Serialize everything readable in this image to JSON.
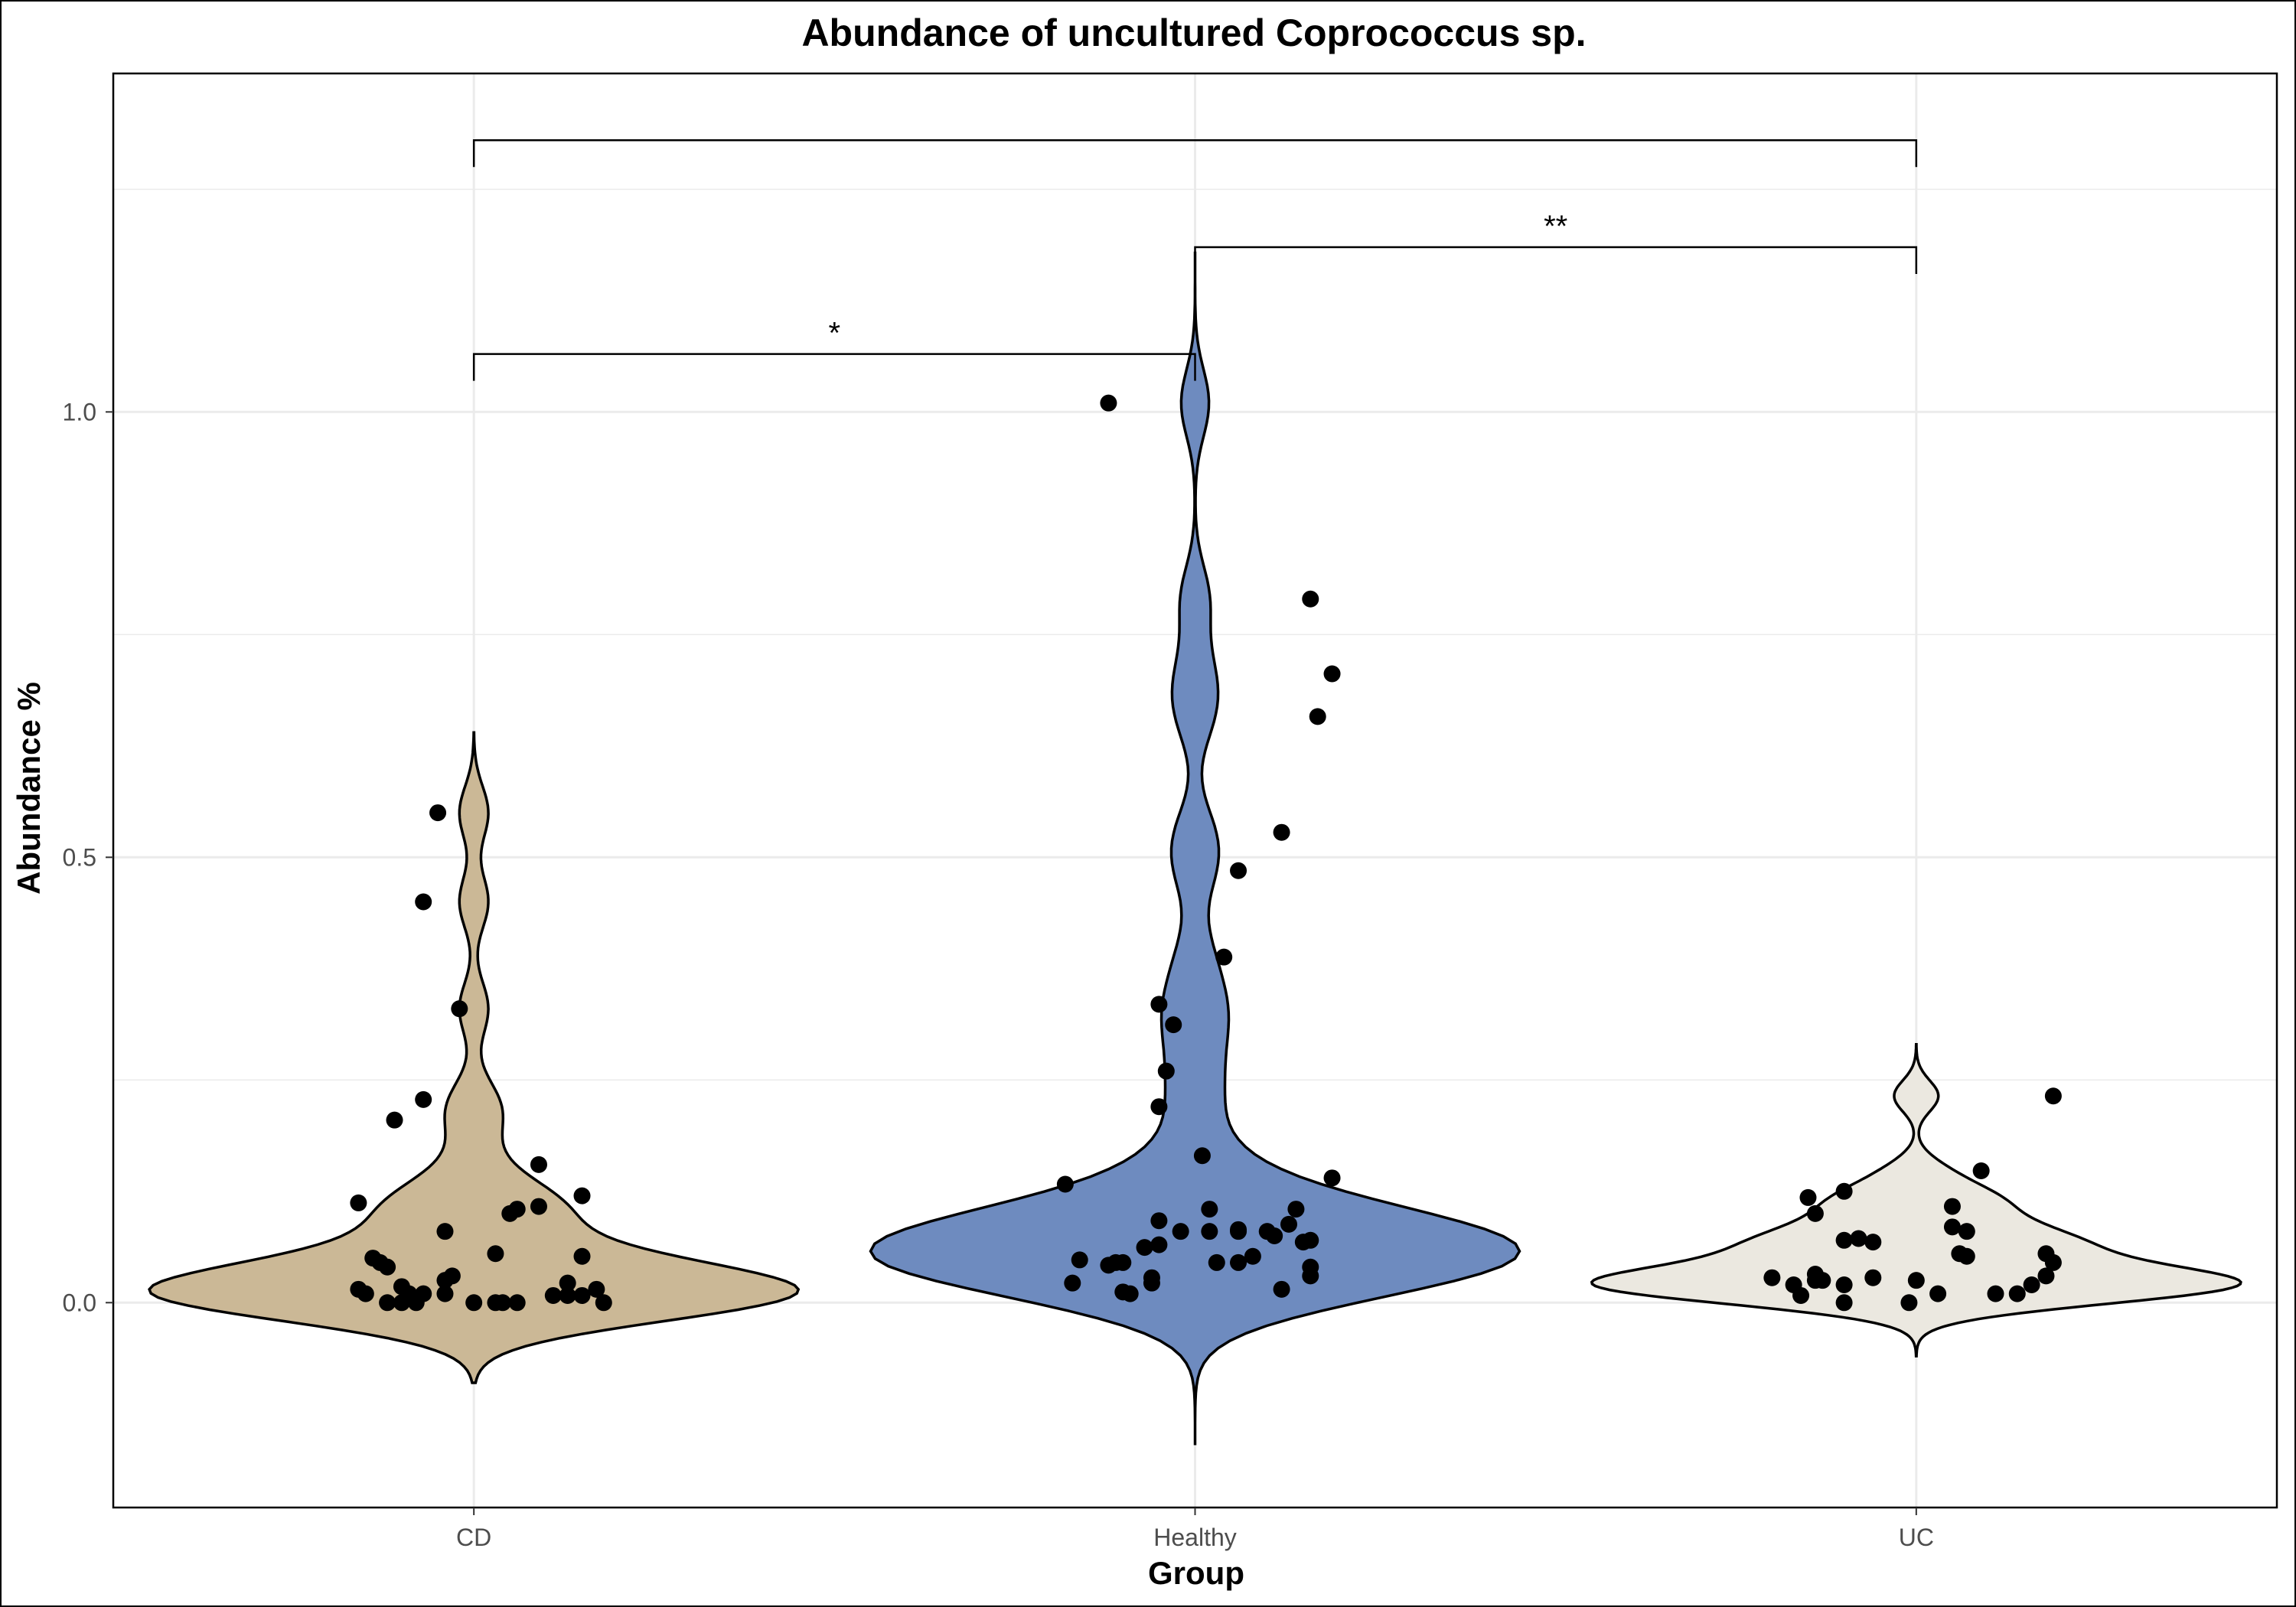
{
  "chart_data": {
    "type": "violin",
    "title": "Abundance of uncultured Coprococcus sp.",
    "xlabel": "Group",
    "ylabel": "Abundance %",
    "categories": [
      "CD",
      "Healthy",
      "UC"
    ],
    "ylim": [
      -0.23,
      1.38
    ],
    "yticks": [
      0.0,
      0.5,
      1.0
    ],
    "ytick_labels": [
      "0.0",
      "0.5",
      "1.0"
    ],
    "grid": true,
    "legend": "none",
    "colors": {
      "CD": "#cbb896",
      "Healthy": "#6e8bbf",
      "UC": "#ebe8e0"
    },
    "series": [
      {
        "name": "CD",
        "violin_ymin": -0.09,
        "violin_ymax": 0.64,
        "points": [
          [
            -0.16,
            0.015
          ],
          [
            -0.15,
            0.01
          ],
          [
            -0.12,
            0.0
          ],
          [
            -0.14,
            0.05
          ],
          [
            -0.13,
            0.045
          ],
          [
            -0.12,
            0.04
          ],
          [
            -0.1,
            0.018
          ],
          [
            -0.1,
            0.0
          ],
          [
            -0.09,
            0.01
          ],
          [
            -0.08,
            0.0
          ],
          [
            -0.07,
            0.01
          ],
          [
            -0.04,
            0.01
          ],
          [
            -0.03,
            0.03
          ],
          [
            -0.04,
            0.025
          ],
          [
            0.0,
            0.0
          ],
          [
            0.03,
            0.0
          ],
          [
            0.04,
            0.0
          ],
          [
            0.06,
            0.0
          ],
          [
            0.11,
            0.008
          ],
          [
            0.13,
            0.008
          ],
          [
            0.15,
            0.008
          ],
          [
            0.17,
            0.015
          ],
          [
            0.18,
            0.0
          ],
          [
            0.13,
            0.022
          ],
          [
            0.15,
            0.052
          ],
          [
            0.03,
            0.055
          ],
          [
            -0.04,
            0.08
          ],
          [
            0.05,
            0.1
          ],
          [
            0.06,
            0.105
          ],
          [
            0.09,
            0.108
          ],
          [
            0.15,
            0.12
          ],
          [
            0.09,
            0.155
          ],
          [
            -0.16,
            0.112
          ],
          [
            -0.11,
            0.205
          ],
          [
            -0.07,
            0.228
          ],
          [
            -0.02,
            0.33
          ],
          [
            -0.07,
            0.45
          ],
          [
            -0.05,
            0.55
          ]
        ]
      },
      {
        "name": "Healthy",
        "violin_ymin": -0.16,
        "violin_ymax": 1.18,
        "points": [
          [
            -0.17,
            0.022
          ],
          [
            -0.16,
            0.048
          ],
          [
            -0.09,
            0.01
          ],
          [
            -0.1,
            0.012
          ],
          [
            -0.12,
            0.042
          ],
          [
            -0.11,
            0.045
          ],
          [
            -0.1,
            0.045
          ],
          [
            -0.06,
            0.022
          ],
          [
            -0.06,
            0.028
          ],
          [
            -0.07,
            0.062
          ],
          [
            -0.05,
            0.065
          ],
          [
            -0.05,
            0.092
          ],
          [
            -0.02,
            0.08
          ],
          [
            0.02,
            0.08
          ],
          [
            0.06,
            0.08
          ],
          [
            0.02,
            0.105
          ],
          [
            0.06,
            0.045
          ],
          [
            0.06,
            0.082
          ],
          [
            0.08,
            0.052
          ],
          [
            0.1,
            0.08
          ],
          [
            0.11,
            0.075
          ],
          [
            0.13,
            0.088
          ],
          [
            0.14,
            0.105
          ],
          [
            0.16,
            0.07
          ],
          [
            0.15,
            0.068
          ],
          [
            0.16,
            0.04
          ],
          [
            0.16,
            0.03
          ],
          [
            0.12,
            0.015
          ],
          [
            0.03,
            0.045
          ],
          [
            -0.05,
            0.22
          ],
          [
            -0.04,
            0.26
          ],
          [
            -0.05,
            0.335
          ],
          [
            -0.03,
            0.312
          ],
          [
            0.01,
            0.165
          ],
          [
            0.19,
            0.14
          ],
          [
            -0.18,
            0.133
          ],
          [
            0.04,
            0.388
          ],
          [
            0.06,
            0.485
          ],
          [
            0.12,
            0.528
          ],
          [
            0.16,
            0.79
          ],
          [
            0.17,
            0.658
          ],
          [
            0.19,
            0.706
          ],
          [
            -0.12,
            1.01
          ]
        ]
      },
      {
        "name": "UC",
        "violin_ymin": -0.06,
        "violin_ymax": 0.29,
        "points": [
          [
            -0.2,
            0.028
          ],
          [
            -0.17,
            0.02
          ],
          [
            -0.16,
            0.008
          ],
          [
            -0.14,
            0.025
          ],
          [
            -0.13,
            0.025
          ],
          [
            -0.14,
            0.032
          ],
          [
            -0.1,
            0.0
          ],
          [
            -0.1,
            0.02
          ],
          [
            -0.06,
            0.028
          ],
          [
            -0.01,
            0.0
          ],
          [
            0.0,
            0.025
          ],
          [
            0.03,
            0.01
          ],
          [
            0.11,
            0.01
          ],
          [
            0.14,
            0.01
          ],
          [
            0.16,
            0.02
          ],
          [
            0.18,
            0.03
          ],
          [
            0.19,
            0.045
          ],
          [
            0.18,
            0.055
          ],
          [
            0.06,
            0.055
          ],
          [
            0.07,
            0.052
          ],
          [
            0.05,
            0.085
          ],
          [
            0.07,
            0.08
          ],
          [
            0.05,
            0.108
          ],
          [
            -0.06,
            0.068
          ],
          [
            -0.08,
            0.072
          ],
          [
            -0.1,
            0.07
          ],
          [
            -0.14,
            0.1
          ],
          [
            -0.15,
            0.118
          ],
          [
            -0.1,
            0.125
          ],
          [
            0.09,
            0.148
          ],
          [
            0.19,
            0.232
          ]
        ]
      }
    ],
    "significance": [
      {
        "from": "CD",
        "to": "Healthy",
        "y": 1.065,
        "label": "*"
      },
      {
        "from": "Healthy",
        "to": "UC",
        "y": 1.185,
        "label": "**"
      },
      {
        "from": "CD",
        "to": "UC",
        "y": 1.305,
        "label": ""
      }
    ]
  }
}
